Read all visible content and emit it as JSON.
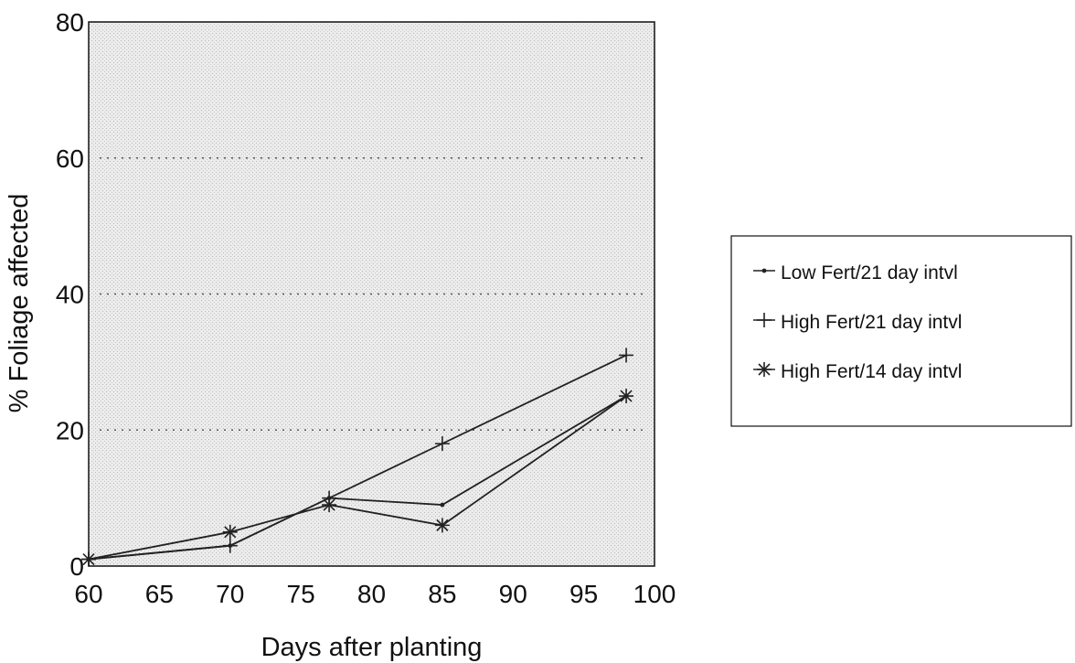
{
  "chart_data": {
    "type": "line",
    "title": "",
    "xlabel": "Days after planting",
    "ylabel": "% Foliage affected",
    "xlim": [
      60,
      100
    ],
    "ylim": [
      0,
      80
    ],
    "x_ticks": [
      "60",
      "65",
      "70",
      "75",
      "80",
      "85",
      "90",
      "95",
      "100"
    ],
    "y_ticks": [
      "0",
      "20",
      "40",
      "60",
      "80"
    ],
    "grid": "dotted horizontal at 20, 40, 60",
    "legend_position": "right",
    "series": [
      {
        "name": "Low Fert/21 day intvl",
        "marker": "dot",
        "x": [
          60,
          70,
          77,
          85,
          98
        ],
        "y": [
          1,
          3,
          10,
          9,
          25
        ]
      },
      {
        "name": "High Fert/21 day intvl",
        "marker": "plus",
        "x": [
          60,
          70,
          77,
          85,
          98
        ],
        "y": [
          1,
          3,
          10,
          18,
          31
        ]
      },
      {
        "name": "High Fert/14 day intvl",
        "marker": "asterisk",
        "x": [
          60,
          70,
          77,
          85,
          98
        ],
        "y": [
          1,
          5,
          9,
          6,
          25
        ]
      }
    ],
    "colors": {
      "line": "#222222",
      "plot_background": "#e6e6e6",
      "grid": "#555555"
    }
  }
}
